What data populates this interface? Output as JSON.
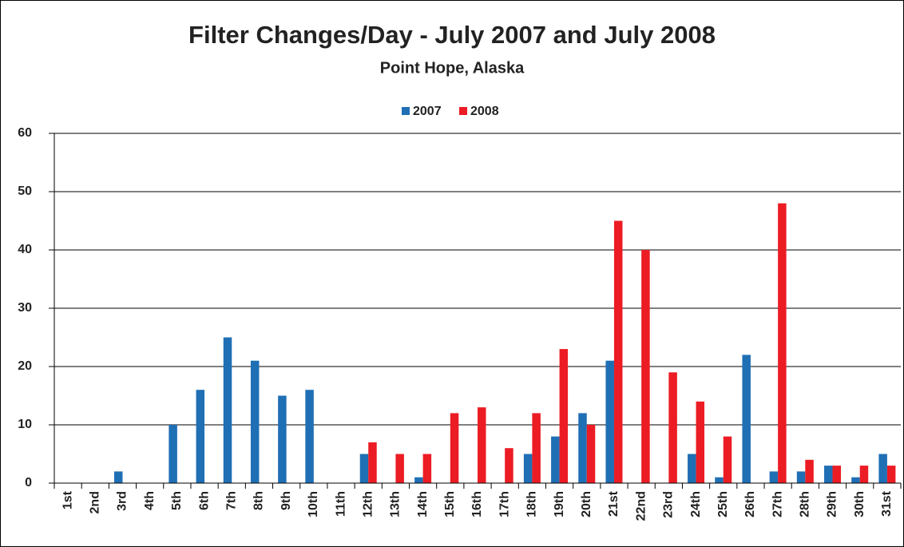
{
  "chart_data": {
    "type": "bar",
    "title": "Filter Changes/Day - July 2007 and July 2008",
    "subtitle": "Point Hope, Alaska",
    "categories": [
      "1st",
      "2nd",
      "3rd",
      "4th",
      "5th",
      "6th",
      "7th",
      "8th",
      "9th",
      "10th",
      "11th",
      "12th",
      "13th",
      "14th",
      "15th",
      "16th",
      "17th",
      "18th",
      "19th",
      "20th",
      "21st",
      "22nd",
      "23rd",
      "24th",
      "25th",
      "26th",
      "27th",
      "28th",
      "29th",
      "30th",
      "31st"
    ],
    "series": [
      {
        "name": "2007",
        "color": "#1f6fb5",
        "values": [
          0,
          0,
          2,
          0,
          10,
          16,
          25,
          21,
          15,
          16,
          0,
          5,
          0,
          1,
          0,
          0,
          0,
          5,
          8,
          12,
          21,
          0,
          0,
          5,
          1,
          22,
          2,
          2,
          3,
          1,
          5
        ]
      },
      {
        "name": "2008",
        "color": "#ec1c24",
        "values": [
          0,
          0,
          0,
          0,
          0,
          0,
          0,
          0,
          0,
          0,
          0,
          7,
          5,
          5,
          12,
          13,
          6,
          12,
          23,
          10,
          45,
          40,
          19,
          14,
          8,
          0,
          48,
          4,
          3,
          3,
          3
        ]
      }
    ],
    "ylim": [
      0,
      60
    ],
    "yticks": [
      0,
      10,
      20,
      30,
      40,
      50,
      60
    ],
    "grid": true,
    "legend": "top"
  }
}
